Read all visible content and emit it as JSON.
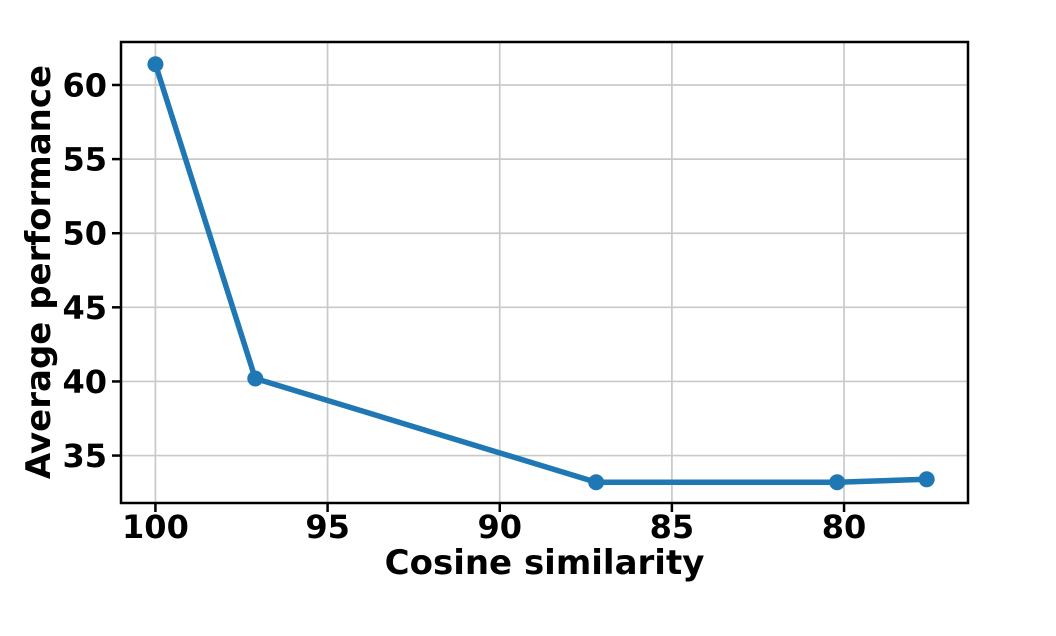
{
  "figure": {
    "background_color": "#ffffff"
  },
  "chart_data": {
    "type": "line",
    "xlabel": "Cosine similarity",
    "ylabel": "Average performance",
    "series": [
      {
        "name": "average-performance",
        "x": [
          100,
          97.1,
          87.2,
          80.2,
          77.6
        ],
        "y": [
          61.4,
          40.2,
          33.2,
          33.2,
          33.4
        ],
        "color": "#1f77b4",
        "marker": "circle",
        "line_width": 5.5,
        "marker_radius": 8
      }
    ],
    "xticks": [
      100,
      95,
      90,
      85,
      80
    ],
    "yticks": [
      35,
      40,
      45,
      50,
      55,
      60
    ],
    "xlim": [
      101.0,
      76.4
    ],
    "ylim": [
      31.8,
      62.9
    ],
    "x_axis_reversed": true,
    "grid": true,
    "grid_color": "#c9c9c9",
    "axis_color": "#000000",
    "tick_label_color": "#000000",
    "legend_position": "none"
  }
}
